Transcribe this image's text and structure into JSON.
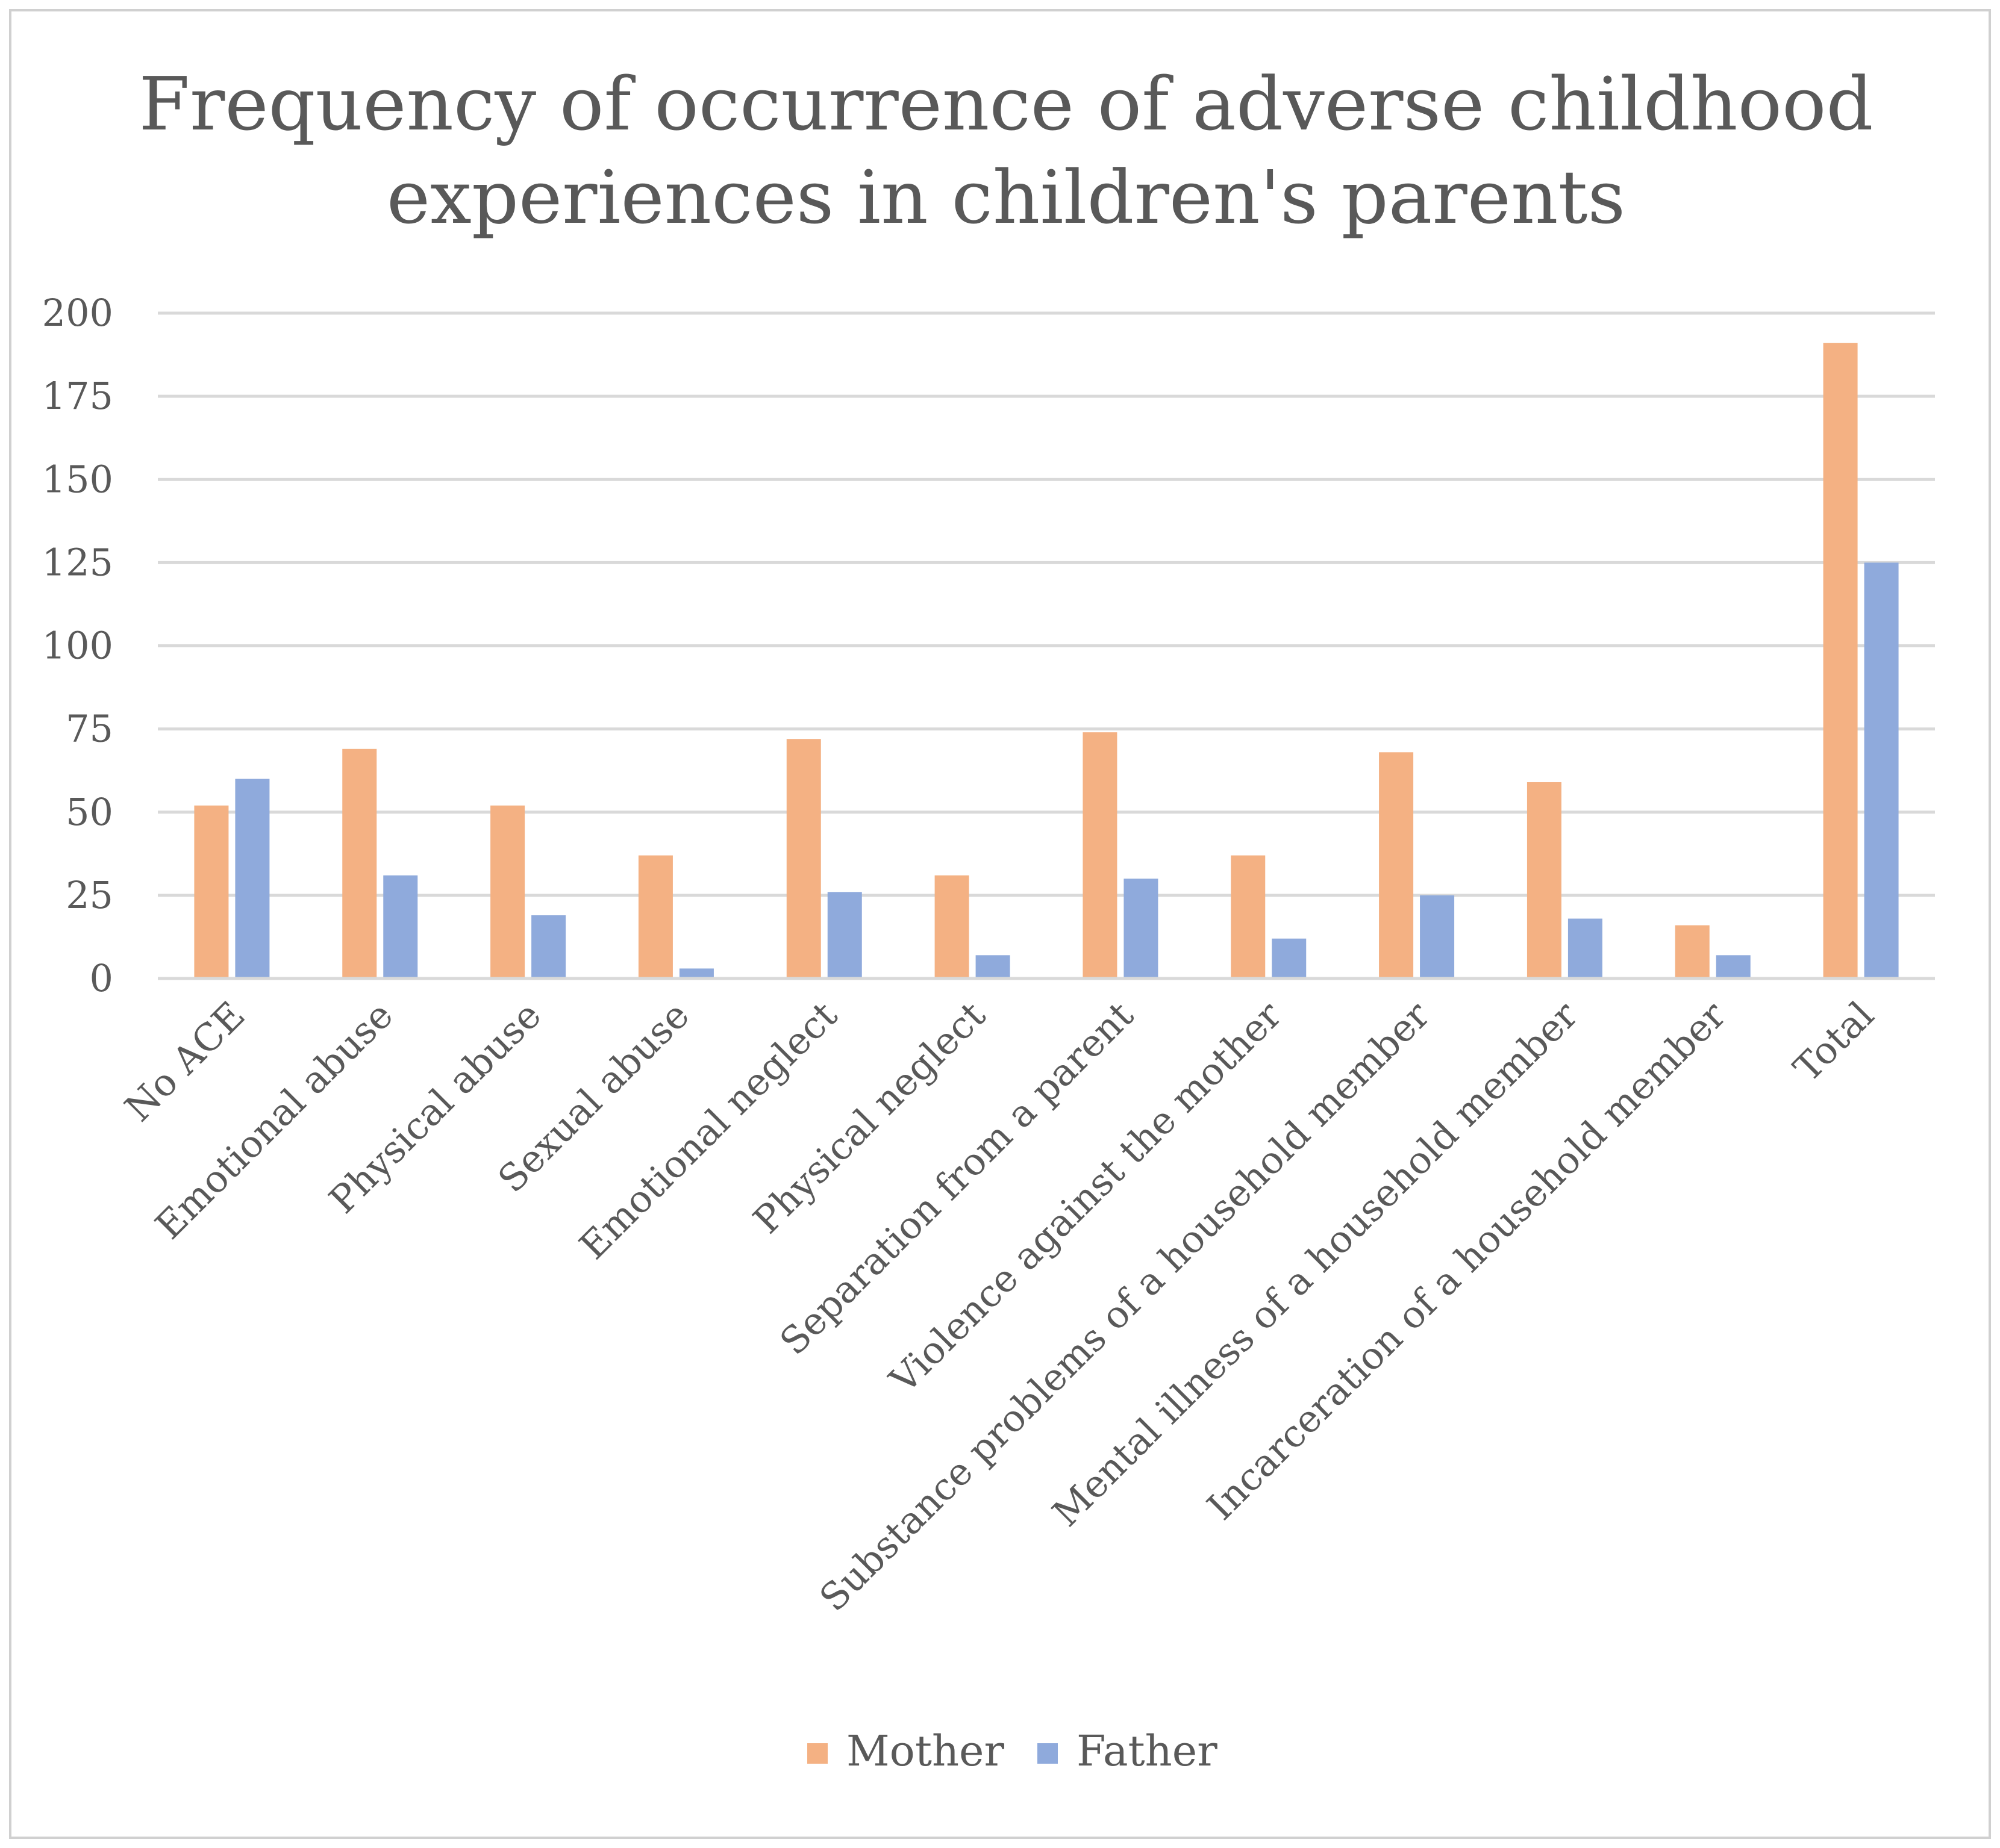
{
  "chart_data": {
    "type": "bar",
    "title_lines": [
      "Frequency of occurrence of adverse childhood",
      "experiences in children's parents"
    ],
    "categories": [
      "No ACE",
      "Emotional abuse",
      "Physical abuse",
      "Sexual abuse",
      "Emotional neglect",
      "Physical neglect",
      "Separation from a parent",
      "Violence against the mother",
      "Substance problems of a household member",
      "Mental illness of a household member",
      "Incarceration of a household member",
      "Total"
    ],
    "series": [
      {
        "name": "Mother",
        "color": "#F4B183",
        "values": [
          52,
          69,
          52,
          37,
          72,
          31,
          74,
          37,
          68,
          59,
          16,
          191
        ]
      },
      {
        "name": "Father",
        "color": "#8FAADC",
        "values": [
          60,
          31,
          19,
          3,
          26,
          7,
          30,
          12,
          25,
          18,
          7,
          125
        ]
      }
    ],
    "ylim": [
      0,
      200
    ],
    "yticks": [
      "0",
      "25",
      "50",
      "75",
      "100",
      "125",
      "150",
      "175",
      "200"
    ],
    "grid": true,
    "legend_position": "bottom",
    "xlabel": "",
    "ylabel": ""
  }
}
